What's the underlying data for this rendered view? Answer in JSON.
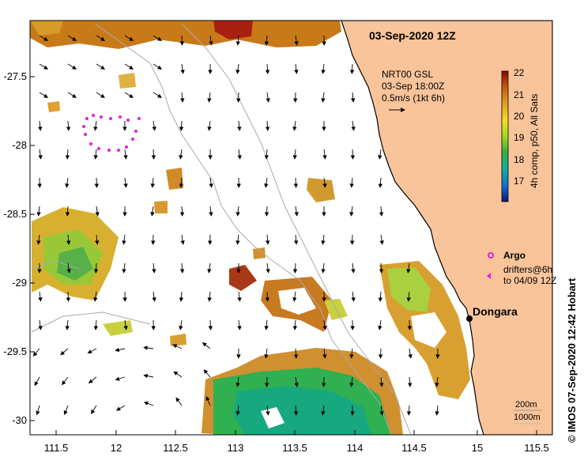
{
  "map": {
    "title": "03-Sep-2020 12Z",
    "product": {
      "line1": "NRT00 GSL",
      "line2": "03-Sep 18:00Z",
      "line3": "0.5m/s (1kt 6h)"
    },
    "colorbar": {
      "label": "4h comp, p50, All Sats",
      "ticks": [
        "22",
        "21",
        "20",
        "19",
        "18",
        "17"
      ],
      "colors": [
        "#8b0000",
        "#c05a10",
        "#e0a020",
        "#f0e020",
        "#a0d820",
        "#30b040",
        "#10b0a0",
        "#1070d0",
        "#101080"
      ]
    },
    "legend": {
      "argo": "Argo",
      "drifters_line1": "drifters@6h",
      "drifters_line2": "to 04/09 12Z"
    },
    "place": "Dongara",
    "scale": {
      "line1": "200m",
      "line2": "1000m"
    },
    "credit": "©  IMOS 07-Sep-2020 12:42 Hobart",
    "x_ticks": [
      "111.5",
      "12",
      "112.5",
      "113",
      "113.5",
      "114",
      "114.5",
      "15",
      "115.5"
    ],
    "y_ticks": [
      "-27.5",
      "-28",
      "-28.5",
      "-29",
      "-29.5",
      "-30"
    ],
    "colors": {
      "land": "#f9c49a",
      "argo": "#e020e0",
      "coast": "#000000"
    }
  }
}
